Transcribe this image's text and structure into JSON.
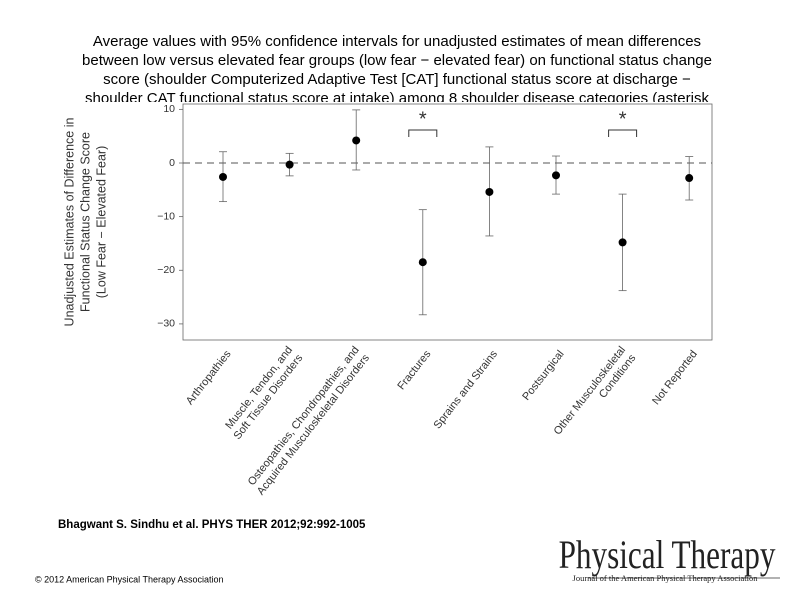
{
  "chart_data": {
    "type": "errorbar",
    "title_lines": [
      "Average values with 95% confidence intervals for unadjusted estimates of mean differences",
      "between low versus elevated fear groups (low fear − elevated fear) on functional status change",
      "score (shoulder Computerized Adaptive Test [CAT] functional status score at discharge −",
      "shoulder CAT functional status score at intake) among 8 shoulder disease categories (asterisk"
    ],
    "ylabel_lines": [
      "Unadjusted Estimates of Difference in",
      "Functional Status Change Score",
      "(Low Fear − Elevated Fear)"
    ],
    "categories": [
      [
        "Arthropathies"
      ],
      [
        "Muscle, Tendon, and",
        "Soft Tissue Disorders"
      ],
      [
        "Osteopathies, Chondropathies, and",
        "Acquired Musculoskeletal Disorders"
      ],
      [
        "Fractures"
      ],
      [
        "Sprains and Strains"
      ],
      [
        "Postsurgical"
      ],
      [
        "Other Musculoskeletal",
        "Conditions"
      ],
      [
        "Not Reported"
      ]
    ],
    "values": [
      -2.6,
      -0.3,
      4.2,
      -18.5,
      -5.4,
      -2.3,
      -14.8,
      -2.8
    ],
    "ci_low": [
      -7.2,
      -2.4,
      -1.3,
      -28.3,
      -13.6,
      -5.8,
      -23.8,
      -6.9
    ],
    "ci_high": [
      2.1,
      1.8,
      9.9,
      -8.7,
      3.0,
      1.3,
      -5.8,
      1.2
    ],
    "significant": [
      false,
      false,
      false,
      true,
      false,
      false,
      true,
      false
    ],
    "significance_marker": "*",
    "reference_line": 0,
    "color": "#000000",
    "ylim": [
      -33,
      11
    ],
    "yticks": [
      {
        "value": -30,
        "label": "−30"
      },
      {
        "value": -20,
        "label": "−20"
      },
      {
        "value": -10,
        "label": "−10"
      },
      0,
      10
    ]
  },
  "citation": "Bhagwant S. Sindhu et al. PHYS THER 2012;92:992-1005",
  "copyright": "© 2012 American Physical Therapy Association",
  "logo": {
    "name": "Physical Therapy",
    "subtitle": "Journal of the American Physical Therapy Association"
  }
}
